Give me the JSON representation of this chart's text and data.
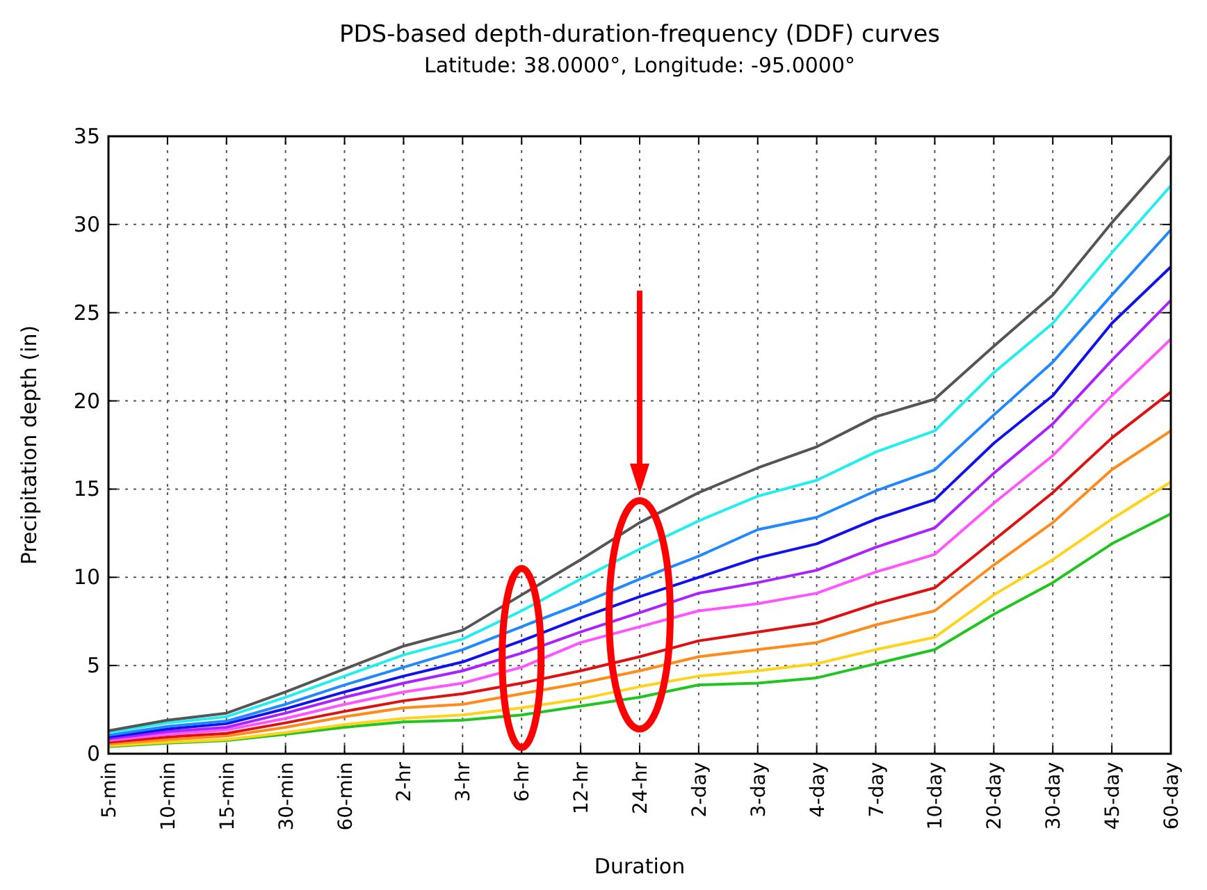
{
  "chart_data": {
    "type": "line",
    "title": "PDS-based depth-duration-frequency (DDF) curves",
    "subtitle": "Latitude: 38.0000°, Longitude: -95.0000°",
    "xlabel": "Duration",
    "ylabel": "Precipitation depth (in)",
    "categories": [
      "5-min",
      "10-min",
      "15-min",
      "30-min",
      "60-min",
      "2-hr",
      "3-hr",
      "6-hr",
      "12-hr",
      "24-hr",
      "2-day",
      "3-day",
      "4-day",
      "7-day",
      "10-day",
      "20-day",
      "30-day",
      "45-day",
      "60-day"
    ],
    "grid": true,
    "ylim": [
      0,
      35
    ],
    "yticks": [
      0,
      5,
      10,
      15,
      20,
      25,
      30,
      35
    ],
    "series": [
      {
        "color": "#22c422",
        "values": [
          0.4,
          0.6,
          0.75,
          1.1,
          1.5,
          1.8,
          1.9,
          2.2,
          2.7,
          3.2,
          3.9,
          4.0,
          4.3,
          5.1,
          5.9,
          7.9,
          9.7,
          11.9,
          13.6
        ]
      },
      {
        "color": "#ffd31a",
        "values": [
          0.45,
          0.65,
          0.8,
          1.2,
          1.65,
          2.0,
          2.2,
          2.6,
          3.1,
          3.8,
          4.4,
          4.7,
          5.1,
          5.9,
          6.6,
          9.0,
          11.0,
          13.3,
          15.4
        ]
      },
      {
        "color": "#ff8c1a",
        "values": [
          0.55,
          0.8,
          1.0,
          1.5,
          2.1,
          2.6,
          2.8,
          3.4,
          4.0,
          4.7,
          5.5,
          5.9,
          6.3,
          7.3,
          8.1,
          10.7,
          13.1,
          16.1,
          18.3
        ]
      },
      {
        "color": "#dd1111",
        "values": [
          0.65,
          0.95,
          1.15,
          1.75,
          2.4,
          3.0,
          3.4,
          4.0,
          4.7,
          5.5,
          6.4,
          6.9,
          7.4,
          8.5,
          9.4,
          12.1,
          14.8,
          17.9,
          20.5
        ]
      },
      {
        "color": "#ff55ff",
        "values": [
          0.75,
          1.1,
          1.35,
          2.0,
          2.8,
          3.5,
          4.0,
          4.9,
          6.3,
          7.2,
          8.1,
          8.5,
          9.1,
          10.3,
          11.3,
          14.2,
          16.9,
          20.3,
          23.5
        ]
      },
      {
        "color": "#aa22ff",
        "values": [
          0.85,
          1.25,
          1.5,
          2.3,
          3.2,
          4.0,
          4.7,
          5.7,
          6.9,
          8.0,
          9.1,
          9.7,
          10.4,
          11.7,
          12.8,
          15.9,
          18.7,
          22.3,
          25.7
        ]
      },
      {
        "color": "#1111ee",
        "values": [
          0.95,
          1.4,
          1.7,
          2.55,
          3.5,
          4.4,
          5.2,
          6.4,
          7.7,
          8.9,
          10.0,
          11.1,
          11.9,
          13.3,
          14.4,
          17.6,
          20.3,
          24.4,
          27.6
        ]
      },
      {
        "color": "#2288ff",
        "values": [
          1.05,
          1.55,
          1.85,
          2.8,
          3.9,
          4.9,
          5.9,
          7.2,
          8.5,
          9.9,
          11.2,
          12.7,
          13.4,
          14.9,
          16.1,
          19.2,
          22.2,
          26.0,
          29.7
        ]
      },
      {
        "color": "#22eeee",
        "values": [
          1.2,
          1.75,
          2.1,
          3.2,
          4.4,
          5.6,
          6.5,
          8.1,
          9.9,
          11.6,
          13.2,
          14.6,
          15.5,
          17.1,
          18.3,
          21.6,
          24.4,
          28.4,
          32.2
        ]
      },
      {
        "color": "#555555",
        "values": [
          1.3,
          1.9,
          2.3,
          3.5,
          4.8,
          6.1,
          7.0,
          9.0,
          11.0,
          13.1,
          14.8,
          16.2,
          17.4,
          19.1,
          20.1,
          23.1,
          26.0,
          30.1,
          33.9
        ]
      }
    ]
  }
}
